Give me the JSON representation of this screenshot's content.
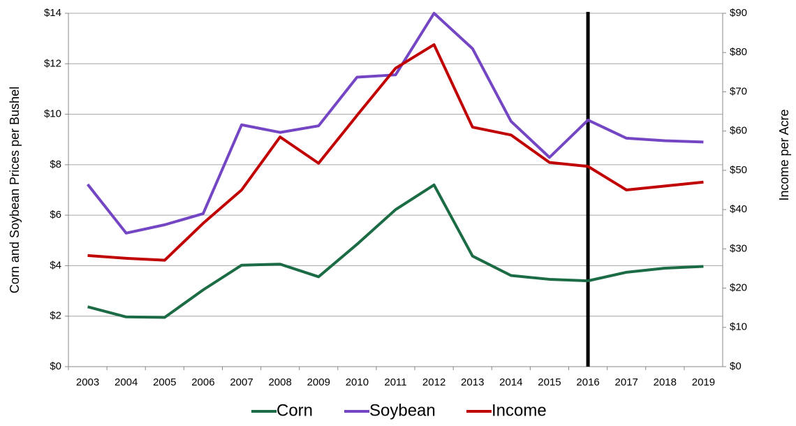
{
  "chart_data": {
    "type": "line",
    "y_axis_label": "Corn and Soybean Prices per Bushel",
    "y2_axis_label": "Income per Acre",
    "categories": [
      "2003",
      "2004",
      "2005",
      "2006",
      "2007",
      "2008",
      "2009",
      "2010",
      "2011",
      "2012",
      "2013",
      "2014",
      "2015",
      "2016",
      "2017",
      "2018",
      "2019"
    ],
    "series": [
      {
        "name": "Corn",
        "color": "#1b6b45",
        "values": [
          2.37,
          1.97,
          1.95,
          3.04,
          4.02,
          4.06,
          3.56,
          4.85,
          6.22,
          7.2,
          4.38,
          3.61,
          3.46,
          3.4,
          3.74,
          3.9,
          3.97
        ]
      },
      {
        "name": "Soybean",
        "color": "#7446c4",
        "values": [
          7.22,
          5.29,
          5.62,
          6.06,
          9.58,
          9.28,
          9.54,
          11.47,
          11.56,
          14.0,
          12.6,
          9.72,
          8.29,
          9.77,
          9.05,
          8.95,
          8.9
        ]
      },
      {
        "name": "Income",
        "color": "#c00000",
        "axis": "y2",
        "values": [
          28.3,
          27.6,
          27.1,
          36.5,
          45,
          58.5,
          51.8,
          64,
          76,
          82,
          61,
          59,
          52,
          51,
          45,
          46,
          47
        ]
      }
    ],
    "ylim": [
      0,
      14
    ],
    "yticks": [
      {
        "value": 0,
        "label": "$0"
      },
      {
        "value": 2,
        "label": "$2"
      },
      {
        "value": 4,
        "label": "$4"
      },
      {
        "value": 6,
        "label": "$6"
      },
      {
        "value": 8,
        "label": "$8"
      },
      {
        "value": 10,
        "label": "$10"
      },
      {
        "value": 12,
        "label": "$12"
      },
      {
        "value": 14,
        "label": "$14"
      }
    ],
    "y2lim": [
      0,
      90
    ],
    "y2ticks": [
      {
        "value": 0,
        "label": "$0"
      },
      {
        "value": 10,
        "label": "$10"
      },
      {
        "value": 20,
        "label": "$20"
      },
      {
        "value": 30,
        "label": "$30"
      },
      {
        "value": 40,
        "label": "$40"
      },
      {
        "value": 50,
        "label": "$50"
      },
      {
        "value": 60,
        "label": "$60"
      },
      {
        "value": 70,
        "label": "$70"
      },
      {
        "value": 80,
        "label": "$80"
      },
      {
        "value": 90,
        "label": "$90"
      }
    ],
    "grid": true,
    "vertical_line_at": "2016",
    "legend": "bottom"
  }
}
